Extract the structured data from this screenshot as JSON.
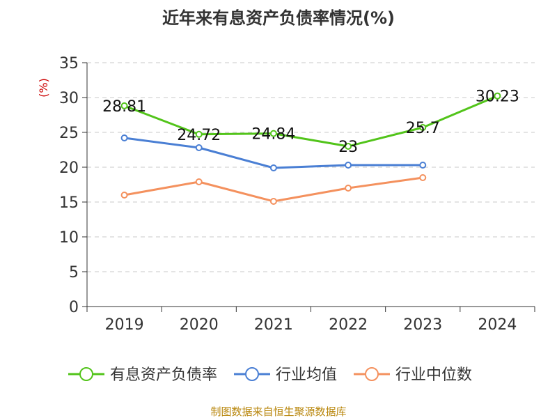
{
  "chart_data": {
    "type": "line",
    "title": "近年来有息资产负债率情况(%)",
    "ylabel": "(%)",
    "xlabel": "",
    "categories": [
      "2019",
      "2020",
      "2021",
      "2022",
      "2023",
      "2024"
    ],
    "y_ticks": [
      "0",
      "5",
      "10",
      "15",
      "20",
      "25",
      "30",
      "35"
    ],
    "ylim": [
      0,
      35
    ],
    "grid": true,
    "legend_position": "bottom",
    "series": [
      {
        "name": "有息资产负债率",
        "color": "#52c41a",
        "values": [
          28.81,
          24.72,
          24.84,
          23,
          25.7,
          30.23
        ],
        "labels": [
          "28.81",
          "24.72",
          "24.84",
          "23",
          "25.7",
          "30.23"
        ]
      },
      {
        "name": "行业均值",
        "color": "#4a7fd4",
        "values": [
          24.2,
          22.8,
          19.9,
          20.3,
          20.3,
          null
        ]
      },
      {
        "name": "行业中位数",
        "color": "#f4915e",
        "values": [
          16.0,
          17.9,
          15.1,
          17.0,
          18.5,
          null
        ]
      }
    ]
  },
  "source": "制图数据来自恒生聚源数据库"
}
